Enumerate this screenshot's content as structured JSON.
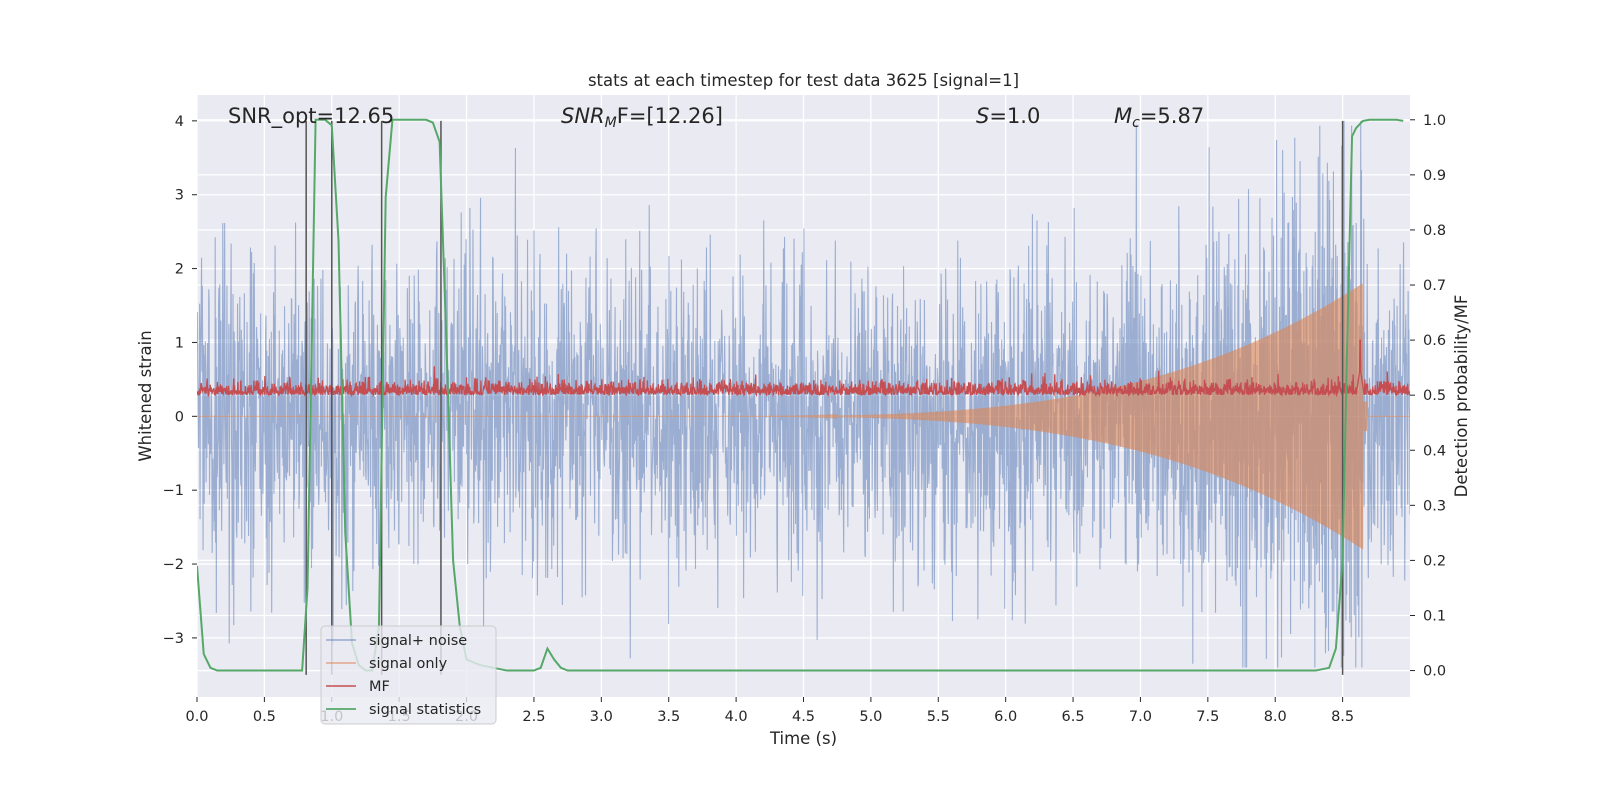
{
  "chart_data": {
    "type": "line",
    "title": "stats at each timestep for test data 3625 [signal=1]",
    "xlabel": "Time (s)",
    "ylabel_left": "Whitened strain",
    "ylabel_right": "Detection probability/MF",
    "xlim": [
      0.0,
      9.0
    ],
    "ylim_left": [
      -3.8,
      4.35
    ],
    "ylim_right": [
      -0.048,
      1.045
    ],
    "x_ticks": [
      0.0,
      0.5,
      1.0,
      1.5,
      2.0,
      2.5,
      3.0,
      3.5,
      4.0,
      4.5,
      5.0,
      5.5,
      6.0,
      6.5,
      7.0,
      7.5,
      8.0,
      8.5
    ],
    "x_tick_labels": [
      "0.0",
      "0.5",
      "1.0",
      "1.5",
      "2.0",
      "2.5",
      "3.0",
      "3.5",
      "4.0",
      "4.5",
      "5.0",
      "5.5",
      "6.0",
      "6.5",
      "7.0",
      "7.5",
      "8.0",
      "8.5"
    ],
    "y_left_ticks": [
      -3,
      -2,
      -1,
      0,
      1,
      2,
      3,
      4
    ],
    "y_left_tick_labels": [
      "−3",
      "−2",
      "−1",
      "0",
      "1",
      "2",
      "3",
      "4"
    ],
    "y_right_ticks": [
      0.0,
      0.1,
      0.2,
      0.3,
      0.4,
      0.5,
      0.6,
      0.7,
      0.8,
      0.9,
      1.0
    ],
    "y_right_tick_labels": [
      "0.0",
      "0.1",
      "0.2",
      "0.3",
      "0.4",
      "0.5",
      "0.6",
      "0.7",
      "0.8",
      "0.9",
      "1.0"
    ],
    "grid": true,
    "legend_position": "lower-left",
    "series": [
      {
        "name": "signal+ noise",
        "axis": "left",
        "color": "#4c72b0",
        "description_stats": {
          "approx_std": 1.0,
          "approx_range": [
            -3.4,
            4.0
          ]
        }
      },
      {
        "name": "signal only",
        "axis": "left",
        "color": "#dd8452",
        "chirp": {
          "start_time": 3.8,
          "peak_time": 8.65,
          "peak_amplitude": 1.8
        }
      },
      {
        "name": "MF",
        "axis": "right",
        "color": "#c44e52",
        "baseline": 0.5,
        "spike": {
          "time": 8.63,
          "value": 0.6
        }
      },
      {
        "name": "signal statistics",
        "axis": "right",
        "color": "#55a868",
        "x": [
          0.0,
          0.05,
          0.1,
          0.15,
          0.2,
          0.78,
          0.82,
          0.88,
          0.95,
          1.0,
          1.05,
          1.1,
          1.15,
          1.2,
          1.25,
          1.3,
          1.35,
          1.4,
          1.45,
          1.5,
          1.6,
          1.7,
          1.75,
          1.8,
          1.85,
          1.9,
          1.95,
          2.0,
          2.1,
          2.2,
          2.3,
          2.4,
          2.5,
          2.55,
          2.6,
          2.65,
          2.7,
          2.75,
          2.8,
          3.5,
          4.5,
          5.5,
          6.5,
          7.5,
          8.0,
          8.3,
          8.4,
          8.45,
          8.5,
          8.53,
          8.57,
          8.6,
          8.65,
          8.7,
          8.8,
          8.9,
          8.95
        ],
        "values": [
          0.19,
          0.03,
          0.005,
          0.0,
          0.0,
          0.0,
          0.15,
          1.0,
          1.0,
          0.99,
          0.78,
          0.25,
          0.05,
          0.01,
          0.0,
          0.0,
          0.08,
          0.86,
          1.0,
          1.0,
          1.0,
          1.0,
          0.995,
          0.96,
          0.6,
          0.2,
          0.08,
          0.02,
          0.01,
          0.005,
          0.0,
          0.0,
          0.0,
          0.005,
          0.04,
          0.02,
          0.005,
          0.0,
          0.0,
          0.0,
          0.0,
          0.0,
          0.0,
          0.0,
          0.0,
          0.0,
          0.005,
          0.04,
          0.2,
          0.55,
          0.97,
          0.985,
          0.998,
          1.0,
          1.0,
          1.0,
          0.998
        ]
      }
    ],
    "vertical_lines": {
      "color": "#555555",
      "axis": "left",
      "y_range": [
        -3.5,
        4.0
      ],
      "x": [
        0.81,
        1.0,
        1.37,
        1.81,
        8.5
      ]
    },
    "annotations": {
      "snr_opt": "SNR_opt=12.65",
      "snr_mf_main": "SNR",
      "snr_mf_sub": "M",
      "snr_mf_rest": "F=[12.26]",
      "s_var": "S",
      "s_rest": "=1.0",
      "mc_var": "M",
      "mc_sub": "c",
      "mc_rest": "=5.87"
    },
    "legend": [
      "signal+ noise",
      "signal only",
      "MF",
      "signal statistics"
    ]
  }
}
